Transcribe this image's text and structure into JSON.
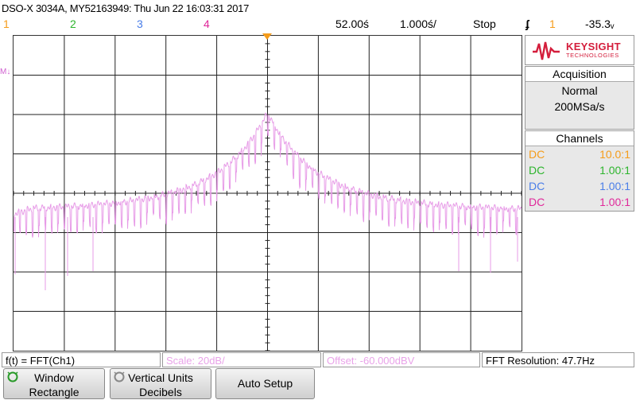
{
  "title": "DSO-X 3034A, MY52163949: Thu Jun 22 16:03:31 2017",
  "channels_top": [
    "1",
    "2",
    "3",
    "4"
  ],
  "timebase": {
    "delay": "52.00ś",
    "time_per_div": "1.000ś/",
    "run_state": "Stop",
    "trigger_channel": "1",
    "trigger_level": "-35.3ᵥ"
  },
  "math_marker": "M↓",
  "logo": {
    "brand": "KEYSIGHT",
    "sub": "TECHNOLOGIES"
  },
  "acquisition": {
    "header": "Acquisition",
    "mode": "Normal",
    "rate": "200MSa/s"
  },
  "channels_panel": {
    "header": "Channels",
    "rows": [
      {
        "coupling": "DC",
        "scale": "10.0:1",
        "color": "#f59c1a"
      },
      {
        "coupling": "DC",
        "scale": "1.00:1",
        "color": "#2db52d"
      },
      {
        "coupling": "DC",
        "scale": "1.00:1",
        "color": "#4a7ee8"
      },
      {
        "coupling": "DC",
        "scale": "1.00:1",
        "color": "#e0289a"
      }
    ]
  },
  "info_bar": {
    "function": "f(t) = FFT(Ch1)",
    "scale": "Scale: 20dB/",
    "offset": "Offset: -60.000dBV",
    "resolution": "FFT Resolution: 47.7Hz"
  },
  "softkeys": [
    {
      "line1": "Window",
      "line2": "Rectangle"
    },
    {
      "line1": "Vertical Units",
      "line2": "Decibels"
    },
    {
      "line1": "Auto Setup",
      "line2": ""
    }
  ],
  "colors": {
    "ch1": "#f59c1a",
    "ch2": "#2db52d",
    "ch3": "#4a7ee8",
    "ch4": "#e0289a",
    "fft_trace": "#e79be7",
    "math_text": "#e9a3e9"
  }
}
